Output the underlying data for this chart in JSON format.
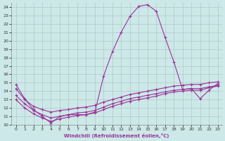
{
  "xlabel": "Windchill (Refroidissement éolien,°C)",
  "background_color": "#cde8e8",
  "grid_color": "#b0c8c8",
  "line_color": "#993399",
  "xlim": [
    -0.5,
    23.5
  ],
  "ylim": [
    10,
    24.5
  ],
  "x_ticks": [
    0,
    1,
    2,
    3,
    4,
    5,
    6,
    7,
    8,
    9,
    10,
    11,
    12,
    13,
    14,
    15,
    16,
    17,
    18,
    19,
    20,
    21,
    22,
    23
  ],
  "y_ticks": [
    10,
    11,
    12,
    13,
    14,
    15,
    16,
    17,
    18,
    19,
    20,
    21,
    22,
    23,
    24
  ],
  "series1_x": [
    0,
    1,
    2,
    3,
    4,
    5,
    6,
    7,
    8,
    9,
    10,
    11,
    12,
    13,
    14,
    15,
    16,
    17,
    18,
    19,
    20,
    21,
    22,
    23
  ],
  "series1_y": [
    14.8,
    13.1,
    11.8,
    11.0,
    10.2,
    11.0,
    11.2,
    11.2,
    11.2,
    11.5,
    15.8,
    18.7,
    21.0,
    22.9,
    24.1,
    24.3,
    23.5,
    20.4,
    17.5,
    14.2,
    14.3,
    13.1,
    14.1,
    14.9
  ],
  "series2_x": [
    0,
    1,
    2,
    3,
    4,
    5,
    6,
    7,
    8,
    9,
    10,
    11,
    12,
    13,
    14,
    15,
    16,
    17,
    18,
    19,
    20,
    21,
    22,
    23
  ],
  "series2_y": [
    14.3,
    13.0,
    12.2,
    11.8,
    11.5,
    11.7,
    11.8,
    12.0,
    12.1,
    12.3,
    12.7,
    13.0,
    13.3,
    13.6,
    13.8,
    14.0,
    14.2,
    14.4,
    14.6,
    14.7,
    14.8,
    14.8,
    15.0,
    15.1
  ],
  "series3_x": [
    0,
    1,
    2,
    3,
    4,
    5,
    6,
    7,
    8,
    9,
    10,
    11,
    12,
    13,
    14,
    15,
    16,
    17,
    18,
    19,
    20,
    21,
    22,
    23
  ],
  "series3_y": [
    13.5,
    12.5,
    11.7,
    11.2,
    10.8,
    11.0,
    11.2,
    11.4,
    11.5,
    11.7,
    12.1,
    12.5,
    12.8,
    13.1,
    13.3,
    13.5,
    13.7,
    13.9,
    14.1,
    14.2,
    14.3,
    14.3,
    14.5,
    14.7
  ],
  "series4_x": [
    0,
    1,
    2,
    3,
    4,
    5,
    6,
    7,
    8,
    9,
    10,
    11,
    12,
    13,
    14,
    15,
    16,
    17,
    18,
    19,
    20,
    21,
    22,
    23
  ],
  "series4_y": [
    13.0,
    12.0,
    11.3,
    10.8,
    10.4,
    10.7,
    10.9,
    11.1,
    11.2,
    11.4,
    11.8,
    12.2,
    12.5,
    12.8,
    13.0,
    13.2,
    13.4,
    13.7,
    13.9,
    14.0,
    14.1,
    14.1,
    14.4,
    14.6
  ]
}
